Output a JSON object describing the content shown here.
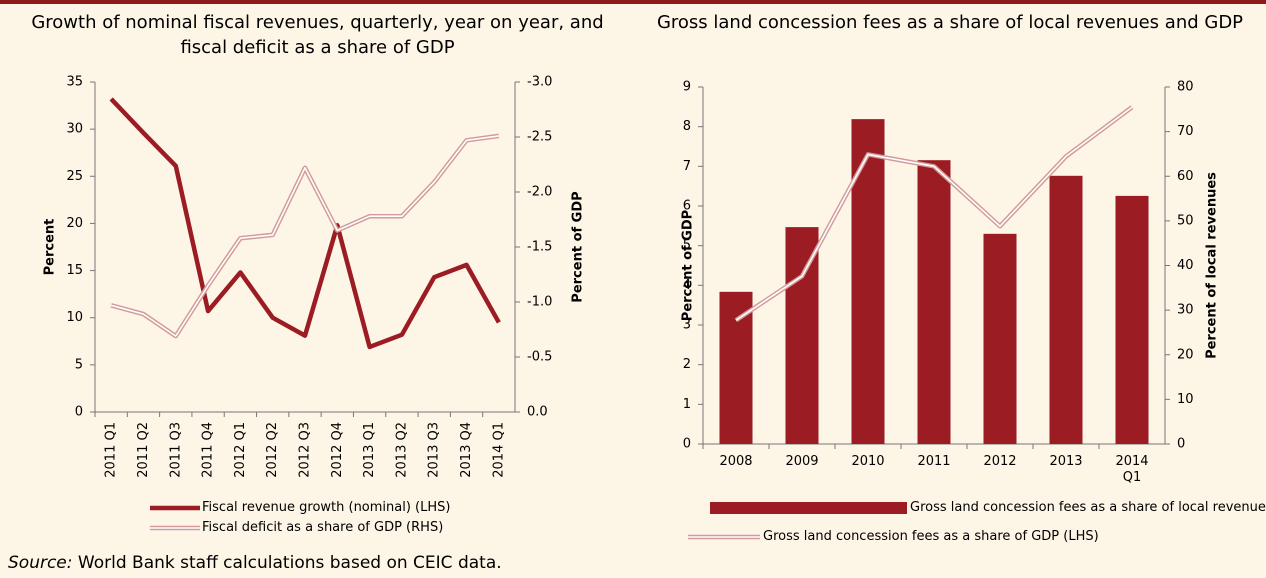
{
  "chart_data": [
    {
      "type": "line",
      "title": "Growth of nominal fiscal revenues, quarterly, year on year, and fiscal deficit as a share of GDP",
      "y_label": "Percent",
      "y2_label": "Percent of GDP",
      "categories": [
        "2011 Q1",
        "2011 Q2",
        "2011 Q3",
        "2011 Q4",
        "2012 Q1",
        "2012 Q2",
        "2012 Q3",
        "2012 Q4",
        "2013 Q1",
        "2013 Q2",
        "2013 Q3",
        "2013 Q4",
        "2014 Q1"
      ],
      "ylim": [
        0,
        35
      ],
      "yticks": [
        0,
        5,
        10,
        15,
        20,
        25,
        30,
        35
      ],
      "y2lim": [
        0,
        -3
      ],
      "y2ticks": [
        {
          "value": 0,
          "label": "0.0"
        },
        {
          "value": -0.5,
          "label": "-0.5"
        },
        {
          "value": -1,
          "label": "-1.0"
        },
        {
          "value": -1.5,
          "label": "-1.5"
        },
        {
          "value": -2,
          "label": "-2.0"
        },
        {
          "value": -2.5,
          "label": "-2.5"
        },
        {
          "value": -3,
          "label": "-3.0"
        }
      ],
      "legend": "bottom",
      "series": [
        {
          "name": "Fiscal revenue growth (nominal) (LHS)",
          "color": "#9b1c22",
          "line_style": "solid",
          "values": [
            33.2,
            29.6,
            26.1,
            10.7,
            14.8,
            10.0,
            8.1,
            19.8,
            6.9,
            8.2,
            14.3,
            15.6,
            9.5
          ]
        },
        {
          "name": "Fiscal deficit as a share of GDP (RHS)",
          "color": "#d29a98",
          "line_style": "double",
          "axis": "y2",
          "values": [
            -0.97,
            -0.89,
            -0.69,
            -1.15,
            -1.58,
            -1.61,
            -2.22,
            -1.65,
            -1.78,
            -1.78,
            -2.09,
            -2.47,
            -2.51
          ]
        }
      ]
    },
    {
      "type": "bar",
      "title": "Gross land concession fees as a share of local revenues and GDP",
      "y_label": "Percent of GDP",
      "y2_label": "Percent of local revenues",
      "categories": [
        "2008",
        "2009",
        "2010",
        "2011",
        "2012",
        "2013",
        "2014 Q1"
      ],
      "ylim": [
        0,
        9
      ],
      "yticks": [
        0,
        1,
        2,
        3,
        4,
        5,
        6,
        7,
        8,
        9
      ],
      "y2lim": [
        0,
        80
      ],
      "y2ticks": [
        0,
        10,
        20,
        30,
        40,
        50,
        60,
        70,
        80
      ],
      "legend": "bottom",
      "series": [
        {
          "name": "Gross land concession fees as a share of local revenues (RHS)",
          "color": "#9b1c22",
          "mark": "bar",
          "axis": "y2",
          "values": [
            34.1,
            48.6,
            72.8,
            63.6,
            47.1,
            60.1,
            55.6
          ]
        },
        {
          "name": "Gross land concession fees as a share of GDP (LHS)",
          "color": "#d29a98",
          "mark": "line",
          "line_style": "double",
          "values": [
            3.12,
            4.23,
            7.3,
            7.0,
            5.49,
            7.25,
            8.49
          ]
        }
      ]
    }
  ],
  "source": {
    "label": "Source:",
    "text": "World Bank staff calculations based on CEIC data."
  }
}
